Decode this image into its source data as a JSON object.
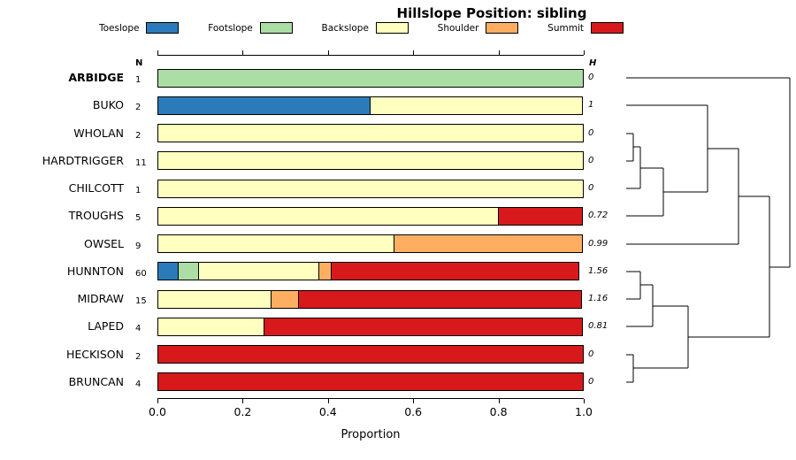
{
  "title": "Hillslope Position: sibling",
  "axis": {
    "label": "Proportion",
    "ticks": [
      "0.0",
      "0.2",
      "0.4",
      "0.6",
      "0.8",
      "1.0"
    ],
    "tick_values": [
      0,
      0.2,
      0.4,
      0.6,
      0.8,
      1.0
    ]
  },
  "columns": {
    "n_header": "N",
    "h_header": "H"
  },
  "chart_data": {
    "type": "bar",
    "orientation": "horizontal-stacked",
    "title": "Hillslope Position: sibling",
    "xlabel": "Proportion",
    "xlim": [
      0,
      1
    ],
    "legend_position": "top",
    "grid": false,
    "categories": [
      "Toeslope",
      "Footslope",
      "Backslope",
      "Shoulder",
      "Summit"
    ],
    "colors": {
      "Toeslope": "#2B7BBA",
      "Footslope": "#ABDDA4",
      "Backslope": "#FFFFBF",
      "Shoulder": "#FDAE61",
      "Summit": "#D7191C"
    },
    "rows": [
      {
        "label": "ARBIDGE",
        "bold": true,
        "n": "1",
        "h": "0",
        "proportions": {
          "Footslope": 1.0
        }
      },
      {
        "label": "BUKO",
        "bold": false,
        "n": "2",
        "h": "1",
        "proportions": {
          "Toeslope": 0.5,
          "Backslope": 0.5
        }
      },
      {
        "label": "WHOLAN",
        "bold": false,
        "n": "2",
        "h": "0",
        "proportions": {
          "Backslope": 1.0
        }
      },
      {
        "label": "HARDTRIGGER",
        "bold": false,
        "n": "11",
        "h": "0",
        "proportions": {
          "Backslope": 1.0
        }
      },
      {
        "label": "CHILCOTT",
        "bold": false,
        "n": "1",
        "h": "0",
        "proportions": {
          "Backslope": 1.0
        }
      },
      {
        "label": "TROUGHS",
        "bold": false,
        "n": "5",
        "h": "0.72",
        "proportions": {
          "Backslope": 0.8,
          "Summit": 0.2
        }
      },
      {
        "label": "OWSEL",
        "bold": false,
        "n": "9",
        "h": "0.99",
        "proportions": {
          "Backslope": 0.556,
          "Shoulder": 0.444
        }
      },
      {
        "label": "HUNNTON",
        "bold": false,
        "n": "60",
        "h": "1.56",
        "proportions": {
          "Toeslope": 0.05,
          "Footslope": 0.05,
          "Backslope": 0.283,
          "Shoulder": 0.033,
          "Summit": 0.583
        }
      },
      {
        "label": "MIDRAW",
        "bold": false,
        "n": "15",
        "h": "1.16",
        "proportions": {
          "Backslope": 0.267,
          "Shoulder": 0.067,
          "Summit": 0.667
        }
      },
      {
        "label": "LAPED",
        "bold": false,
        "n": "4",
        "h": "0.81",
        "proportions": {
          "Backslope": 0.25,
          "Summit": 0.75
        }
      },
      {
        "label": "HECKISON",
        "bold": false,
        "n": "2",
        "h": "0",
        "proportions": {
          "Summit": 1.0
        }
      },
      {
        "label": "BRUNCAN",
        "bold": false,
        "n": "4",
        "h": "0",
        "proportions": {
          "Summit": 1.0
        }
      }
    ],
    "dendrogram": {
      "segments": [
        [
          708,
          151,
          716,
          151
        ],
        [
          708,
          182,
          716,
          182
        ],
        [
          716,
          151,
          716,
          182
        ],
        [
          716,
          166,
          724,
          166
        ],
        [
          708,
          213,
          724,
          213
        ],
        [
          724,
          166,
          724,
          213
        ],
        [
          724,
          190,
          750,
          190
        ],
        [
          708,
          244,
          750,
          244
        ],
        [
          750,
          190,
          750,
          244
        ],
        [
          750,
          217,
          800,
          217
        ],
        [
          708,
          119,
          800,
          119
        ],
        [
          800,
          119,
          800,
          217
        ],
        [
          800,
          168,
          835,
          168
        ],
        [
          708,
          276,
          835,
          276
        ],
        [
          835,
          168,
          835,
          276
        ],
        [
          708,
          307,
          724,
          307
        ],
        [
          708,
          338,
          724,
          338
        ],
        [
          724,
          307,
          724,
          338
        ],
        [
          724,
          322,
          738,
          322
        ],
        [
          708,
          369,
          738,
          369
        ],
        [
          738,
          322,
          738,
          369
        ],
        [
          708,
          401,
          716,
          401
        ],
        [
          708,
          432,
          716,
          432
        ],
        [
          716,
          401,
          716,
          432
        ],
        [
          738,
          346,
          778,
          346
        ],
        [
          716,
          416,
          778,
          416
        ],
        [
          778,
          346,
          778,
          416
        ],
        [
          835,
          222,
          870,
          222
        ],
        [
          778,
          381,
          870,
          381
        ],
        [
          870,
          222,
          870,
          381
        ],
        [
          870,
          302,
          893,
          302
        ],
        [
          708,
          88,
          893,
          88
        ],
        [
          893,
          88,
          893,
          302
        ]
      ]
    }
  }
}
